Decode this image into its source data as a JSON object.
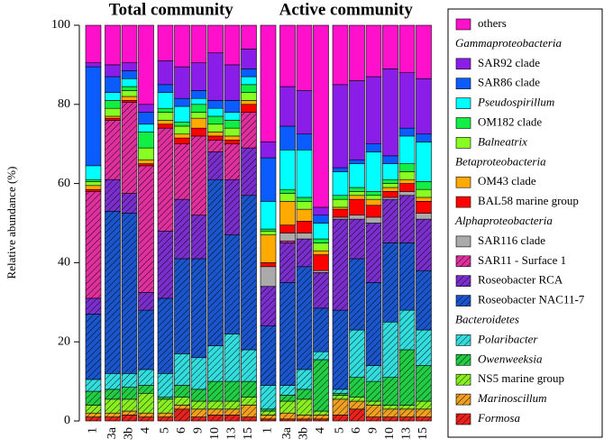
{
  "chart_data": {
    "type": "stacked_bar",
    "ylabel": "Relative abundance (%)",
    "ylim": [
      0,
      100
    ],
    "yticks": [
      0,
      20,
      40,
      60,
      80,
      100
    ],
    "panels": [
      {
        "title": "Total community",
        "categories": [
          "1",
          "3a",
          "3b",
          "4",
          "5",
          "6",
          "9",
          "10",
          "13",
          "15"
        ]
      },
      {
        "title": "Active community",
        "categories": [
          "1",
          "3a",
          "3b",
          "4",
          "5",
          "6",
          "9",
          "10",
          "13",
          "15"
        ]
      }
    ],
    "legend_headers": [
      "Gammaproteobacteria",
      "Betaproteobacteria",
      "Alphaproteobacteria",
      "Bacteroidetes"
    ],
    "series": [
      {
        "name": "Formosa",
        "color": "#e8231e",
        "hatch": true,
        "italic": true,
        "values": [
          1,
          1,
          1.5,
          1,
          1,
          3,
          1,
          1.5,
          1.5,
          1,
          0.5,
          0.5,
          0.5,
          0.5,
          1.5,
          3,
          1,
          1,
          1,
          1
        ]
      },
      {
        "name": "Marinoscillum",
        "color": "#f0a020",
        "hatch": true,
        "italic": true,
        "values": [
          1,
          1,
          1,
          1,
          1,
          1,
          2,
          1.5,
          1.5,
          3,
          1,
          1.5,
          1,
          1,
          4,
          2,
          3,
          2,
          2,
          2
        ]
      },
      {
        "name": "NS5 marine group",
        "color": "#88ee22",
        "hatch": true,
        "italic": false,
        "values": [
          2,
          3.5,
          3,
          5,
          3.5,
          2,
          2,
          2,
          2,
          2,
          1,
          3,
          4,
          1,
          1,
          1,
          1,
          1,
          1,
          2
        ]
      },
      {
        "name": "Owenweeksia",
        "color": "#22cc44",
        "hatch": true,
        "italic": true,
        "values": [
          3.5,
          2.5,
          3,
          2,
          0.5,
          3,
          3,
          5,
          5,
          4,
          0.5,
          1.5,
          2.5,
          13,
          0.5,
          5,
          5,
          7,
          14,
          9
        ]
      },
      {
        "name": "Polaribacter",
        "color": "#33dddd",
        "hatch": true,
        "italic": true,
        "values": [
          3,
          4,
          3.5,
          4,
          6,
          8,
          8,
          9,
          12,
          8,
          6,
          2.5,
          5,
          2,
          1,
          12,
          4,
          14,
          10,
          9
        ]
      },
      {
        "name": "Roseobacter NAC11-7",
        "color": "#1a55cc",
        "hatch": true,
        "italic": false,
        "values": [
          16.5,
          41,
          40.5,
          15,
          19,
          24,
          25,
          42,
          25,
          39,
          15,
          26,
          26,
          11,
          20,
          18,
          21,
          20,
          17,
          15
        ]
      },
      {
        "name": "Roseobacter RCA",
        "color": "#7a2ecc",
        "hatch": true,
        "italic": false,
        "values": [
          4,
          8,
          5,
          4.5,
          17,
          15,
          11,
          7,
          14,
          12,
          10,
          10,
          7,
          9,
          23,
          10,
          15,
          11,
          12,
          13
        ]
      },
      {
        "name": "SAR11 - Surface 1",
        "color": "#e0309e",
        "hatch": true,
        "italic": false,
        "values": [
          27,
          15,
          23,
          32,
          26,
          14,
          20,
          3,
          9,
          9,
          0,
          0.5,
          0,
          0,
          0,
          0,
          0,
          0,
          0,
          0
        ]
      },
      {
        "name": "SAR116 clade",
        "color": "#aaaaaa",
        "hatch": false,
        "italic": false,
        "values": [
          0,
          0,
          0,
          0,
          0,
          0,
          0,
          0,
          0,
          0,
          5,
          2,
          1.5,
          0.5,
          0.5,
          1,
          1.5,
          0.5,
          1,
          1.5
        ]
      },
      {
        "name": "BAL58 marine group",
        "color": "#ff0000",
        "hatch": false,
        "italic": false,
        "values": [
          0.5,
          0.5,
          0.5,
          0.5,
          1,
          1.5,
          2,
          1,
          1,
          2,
          1,
          2,
          3,
          4,
          2,
          4,
          3,
          1.5,
          2,
          3
        ]
      },
      {
        "name": "OM43 clade",
        "color": "#ffaa00",
        "hatch": false,
        "italic": false,
        "values": [
          1,
          0.5,
          1,
          1,
          1,
          1,
          2.5,
          1,
          1,
          1,
          7,
          6,
          3,
          1,
          0.5,
          1,
          1.5,
          1,
          1,
          1
        ]
      },
      {
        "name": "Balneatrix",
        "color": "#88ff22",
        "hatch": false,
        "italic": true,
        "values": [
          1,
          2,
          1.5,
          3,
          2,
          2,
          1.5,
          2,
          2,
          2,
          1,
          2,
          2,
          2,
          2,
          1,
          1,
          1,
          2,
          2
        ]
      },
      {
        "name": "OM182 clade",
        "color": "#11ee44",
        "hatch": false,
        "italic": false,
        "values": [
          0.5,
          2,
          1,
          4,
          1,
          1,
          2,
          2,
          2,
          2,
          0.5,
          1,
          1,
          1,
          1,
          1,
          1,
          1,
          2,
          2
        ]
      },
      {
        "name": "Pseudospirillum",
        "color": "#00ffff",
        "hatch": false,
        "italic": true,
        "values": [
          3.5,
          2,
          2,
          2,
          4,
          4,
          1.5,
          2,
          2,
          2,
          7,
          10,
          12,
          4,
          6,
          6,
          10,
          4,
          7,
          10
        ]
      },
      {
        "name": "SAR86 clade",
        "color": "#0a5cff",
        "hatch": false,
        "italic": false,
        "values": [
          25,
          4,
          2,
          3,
          2,
          2,
          2,
          2,
          3,
          2,
          11,
          6,
          4,
          2,
          1,
          1,
          2,
          2,
          2,
          2
        ]
      },
      {
        "name": "SAR92 clade",
        "color": "#8a1ee8",
        "hatch": false,
        "italic": false,
        "values": [
          1,
          3,
          2,
          2,
          6,
          8,
          7,
          12,
          9,
          5,
          4,
          10,
          11,
          2,
          21,
          20,
          17,
          22,
          14,
          14
        ]
      },
      {
        "name": "others",
        "color": "#ff11cc",
        "hatch": false,
        "italic": false,
        "values": [
          9.5,
          10,
          9.5,
          20,
          9,
          10.5,
          9.5,
          7,
          10,
          6,
          29.5,
          15.5,
          16.5,
          46,
          15,
          14,
          13,
          11,
          12,
          13.5
        ]
      }
    ]
  }
}
